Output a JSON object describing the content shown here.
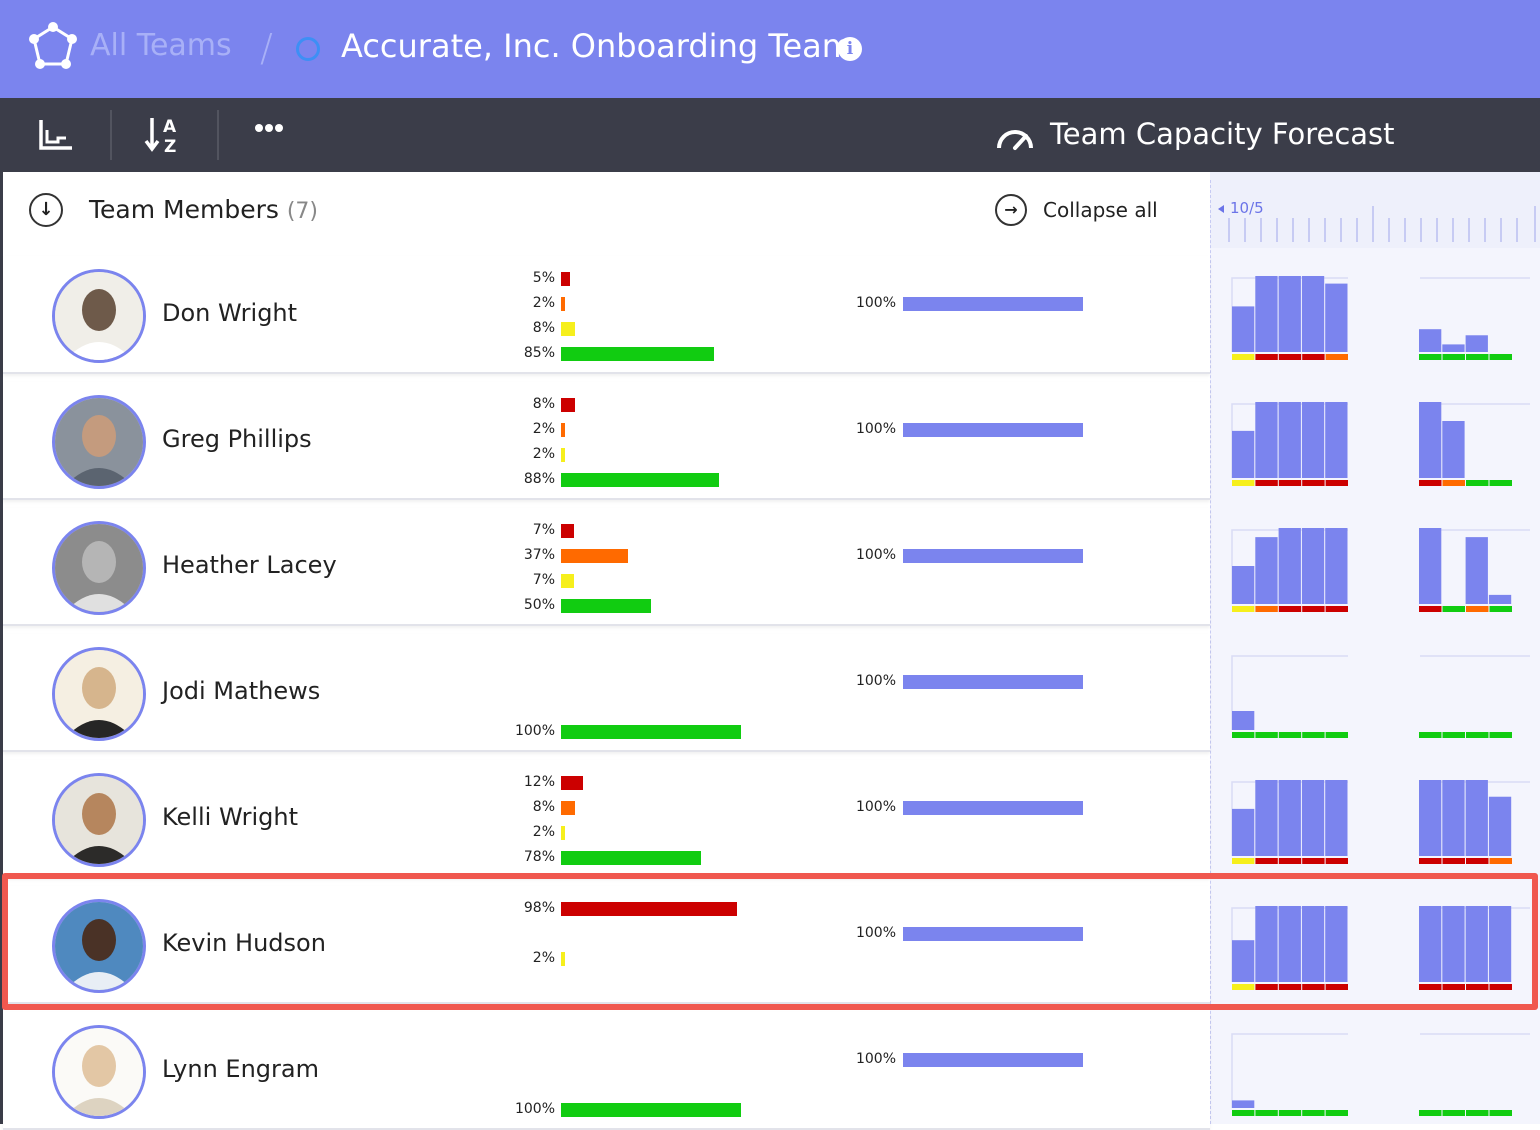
{
  "header": {
    "all_teams_label": "All Teams",
    "separator": "/",
    "team_title": "Accurate, Inc. Onboarding Team",
    "info_glyph": "i"
  },
  "toolbar": {
    "forecast_label": "Team Capacity Forecast"
  },
  "members_header": {
    "title": "Team Members",
    "count": "(7)",
    "collapse_label": "Collapse all"
  },
  "timeline": {
    "date_label": "10/5"
  },
  "colors": {
    "accent": "#7b84ee",
    "red": "#cc0000",
    "orange": "#ff6a00",
    "yellow": "#f6ef1c",
    "green": "#11cc11",
    "highlight": "#f0584f"
  },
  "members": [
    {
      "name": "Don Wright",
      "breakdown": [
        {
          "label": "5%",
          "value": 5,
          "color": "red"
        },
        {
          "label": "2%",
          "value": 2,
          "color": "orange"
        },
        {
          "label": "8%",
          "value": 8,
          "color": "yellow"
        },
        {
          "label": "85%",
          "value": 85,
          "color": "green"
        }
      ],
      "capacity_label": "100%",
      "capacity": 100,
      "forecast_a": [
        0.6,
        1.0,
        1.0,
        1.0,
        0.9
      ],
      "strip_a": [
        "yellow",
        "red",
        "red",
        "red",
        "orange"
      ],
      "forecast_b": [
        0.3,
        0.1,
        0.22
      ],
      "strip_b": [
        "green",
        "green",
        "green",
        "green"
      ]
    },
    {
      "name": "Greg Phillips",
      "breakdown": [
        {
          "label": "8%",
          "value": 8,
          "color": "red"
        },
        {
          "label": "2%",
          "value": 2,
          "color": "orange"
        },
        {
          "label": "2%",
          "value": 2,
          "color": "yellow"
        },
        {
          "label": "88%",
          "value": 88,
          "color": "green"
        }
      ],
      "capacity_label": "100%",
      "capacity": 100,
      "forecast_a": [
        0.62,
        1.0,
        1.0,
        1.0,
        1.0
      ],
      "strip_a": [
        "yellow",
        "red",
        "red",
        "red",
        "red"
      ],
      "forecast_b": [
        1.0,
        0.75
      ],
      "strip_b": [
        "red",
        "orange",
        "green",
        "green"
      ]
    },
    {
      "name": "Heather Lacey",
      "breakdown": [
        {
          "label": "7%",
          "value": 7,
          "color": "red"
        },
        {
          "label": "37%",
          "value": 37,
          "color": "orange"
        },
        {
          "label": "7%",
          "value": 7,
          "color": "yellow"
        },
        {
          "label": "50%",
          "value": 50,
          "color": "green"
        }
      ],
      "capacity_label": "100%",
      "capacity": 100,
      "forecast_a": [
        0.5,
        0.88,
        1.0,
        1.0,
        1.0
      ],
      "strip_a": [
        "yellow",
        "orange",
        "red",
        "red",
        "red"
      ],
      "forecast_b": [
        1.0,
        0,
        0.88,
        0.12
      ],
      "strip_b": [
        "red",
        "green",
        "orange",
        "green"
      ]
    },
    {
      "name": "Jodi Mathews",
      "breakdown": [
        {
          "label": "100%",
          "value": 100,
          "color": "green"
        }
      ],
      "capacity_label": "100%",
      "capacity": 100,
      "forecast_a": [
        0.25
      ],
      "strip_a": [
        "green",
        "green",
        "green",
        "green",
        "green"
      ],
      "forecast_b": [],
      "strip_b": [
        "green",
        "green",
        "green",
        "green"
      ]
    },
    {
      "name": "Kelli Wright",
      "breakdown": [
        {
          "label": "12%",
          "value": 12,
          "color": "red"
        },
        {
          "label": "8%",
          "value": 8,
          "color": "orange"
        },
        {
          "label": "2%",
          "value": 2,
          "color": "yellow"
        },
        {
          "label": "78%",
          "value": 78,
          "color": "green"
        }
      ],
      "capacity_label": "100%",
      "capacity": 100,
      "forecast_a": [
        0.62,
        1.0,
        1.0,
        1.0,
        1.0
      ],
      "strip_a": [
        "yellow",
        "red",
        "red",
        "red",
        "red"
      ],
      "forecast_b": [
        1.0,
        1.0,
        1.0,
        0.78
      ],
      "strip_b": [
        "red",
        "red",
        "red",
        "orange"
      ]
    },
    {
      "name": "Kevin Hudson",
      "breakdown": [
        {
          "label": "98%",
          "value": 98,
          "color": "red"
        },
        {
          "label": "",
          "value": 0,
          "color": "orange"
        },
        {
          "label": "2%",
          "value": 2,
          "color": "yellow"
        },
        {
          "label": "",
          "value": 0,
          "color": "green"
        }
      ],
      "capacity_label": "100%",
      "capacity": 100,
      "forecast_a": [
        0.55,
        1.0,
        1.0,
        1.0,
        1.0
      ],
      "strip_a": [
        "yellow",
        "red",
        "red",
        "red",
        "red"
      ],
      "forecast_b": [
        1.0,
        1.0,
        1.0,
        1.0
      ],
      "strip_b": [
        "red",
        "red",
        "red",
        "red"
      ]
    },
    {
      "name": "Lynn Engram",
      "breakdown": [
        {
          "label": "100%",
          "value": 100,
          "color": "green"
        }
      ],
      "capacity_label": "100%",
      "capacity": 100,
      "forecast_a": [
        0.1
      ],
      "strip_a": [
        "green",
        "green",
        "green",
        "green",
        "green"
      ],
      "forecast_b": [],
      "strip_b": [
        "green",
        "green",
        "green",
        "green"
      ]
    }
  ]
}
